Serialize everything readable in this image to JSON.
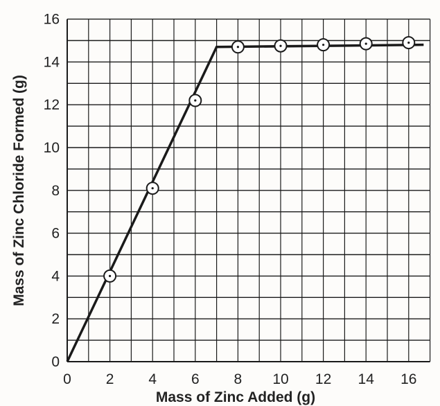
{
  "chart_data": {
    "type": "line",
    "title": "",
    "xlabel": "Mass of Zinc Added (g)",
    "ylabel": "Mass of Zinc Chloride Formed (g)",
    "xlim": [
      0,
      17
    ],
    "ylim": [
      0,
      16
    ],
    "grid": true,
    "x_ticks": [
      "0",
      "2",
      "4",
      "6",
      "8",
      "10",
      "12",
      "14",
      "16"
    ],
    "y_ticks": [
      "0",
      "2",
      "4",
      "6",
      "8",
      "10",
      "12",
      "14",
      "16"
    ],
    "line_points": [
      [
        0,
        0
      ],
      [
        7.0,
        14.7
      ],
      [
        16.7,
        14.8
      ]
    ],
    "points": [
      [
        2,
        4.0
      ],
      [
        4,
        8.1
      ],
      [
        6,
        12.2
      ],
      [
        8,
        14.7
      ],
      [
        10,
        14.75
      ],
      [
        12,
        14.8
      ],
      [
        14,
        14.85
      ],
      [
        16,
        14.9
      ]
    ],
    "colors": {
      "ink": "#1a1a1a",
      "background": "#fdfcfa"
    }
  }
}
